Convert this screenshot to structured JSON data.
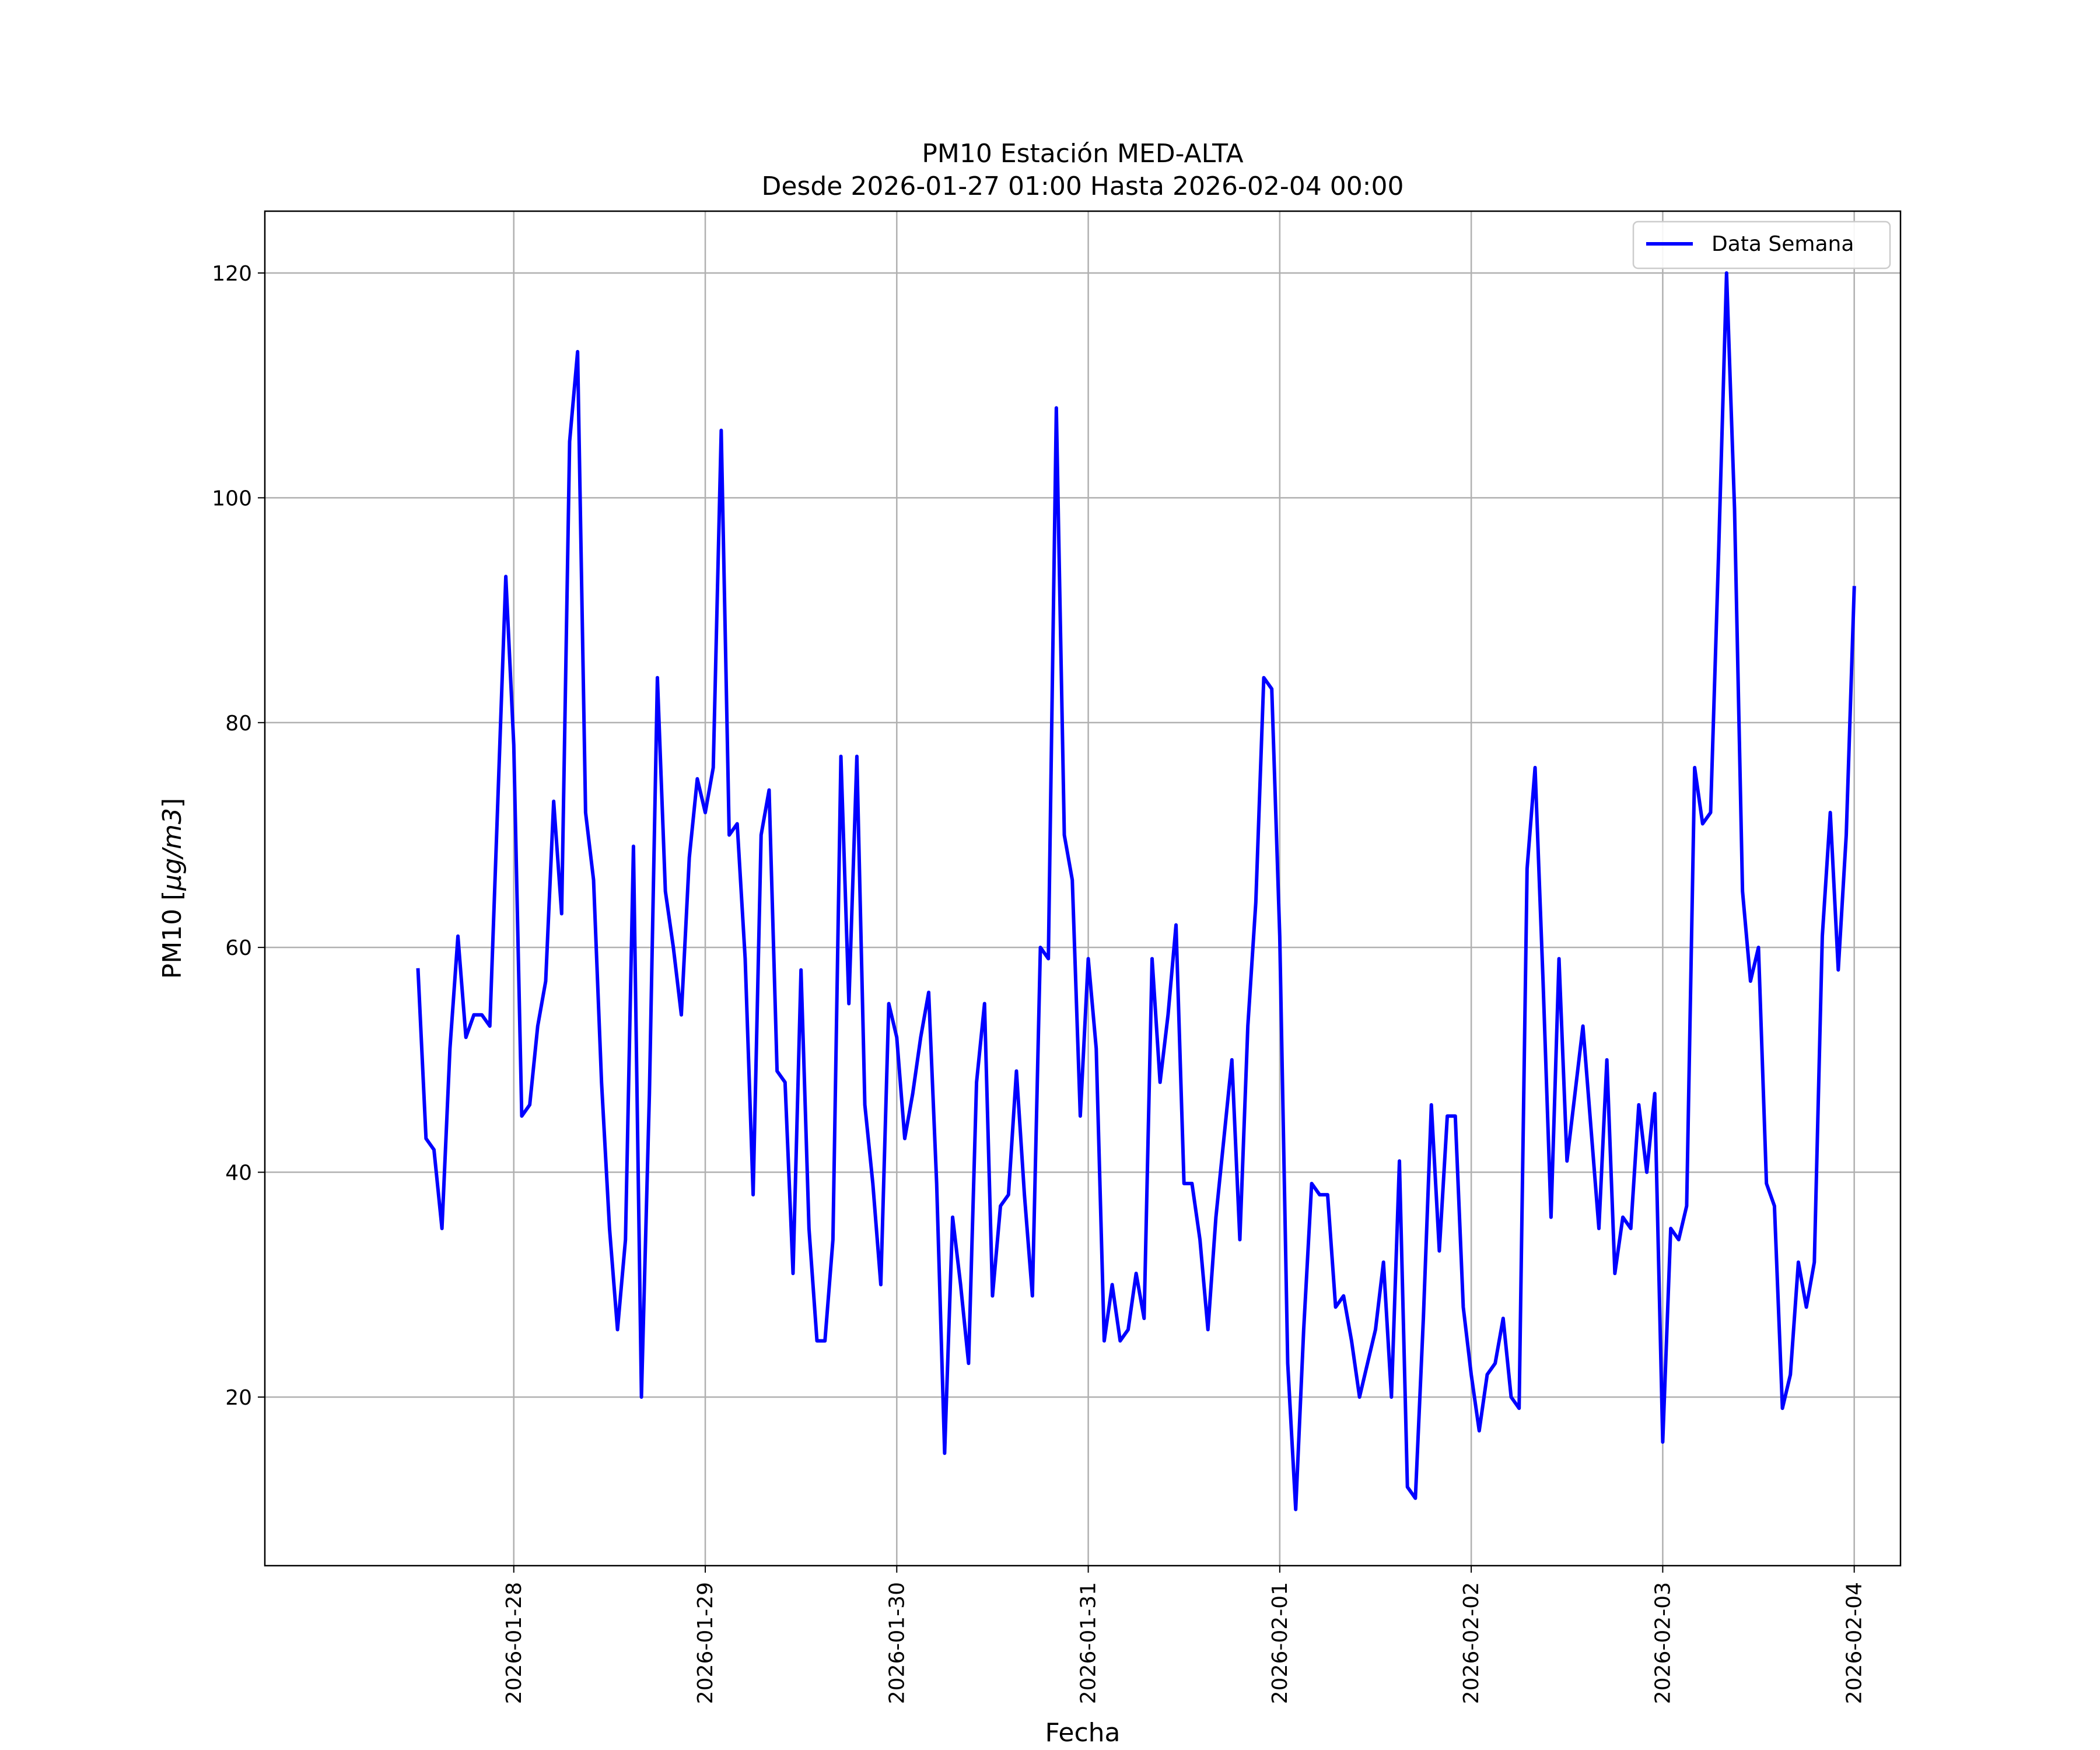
{
  "chart_data": {
    "type": "line",
    "title": "PM10 Estación MED-ALTA",
    "subtitle": "Desde 2026-01-27 01:00 Hasta 2026-02-04 00:00",
    "xlabel": "Fecha",
    "ylabel": "PM10 [",
    "ylabel_unit": "μg/m3",
    "ylabel_suffix": "]",
    "ylim": [
      5,
      125.5
    ],
    "xlim_hours_from_2026_01_28": [
      -31.2,
      173.8
    ],
    "grid": true,
    "legend_position": "top-right",
    "x_tick_labels": [
      "2026-01-28",
      "2026-01-29",
      "2026-01-30",
      "2026-01-31",
      "2026-02-01",
      "2026-02-02",
      "2026-02-03",
      "2026-02-04"
    ],
    "x_tick_hours": [
      0,
      24,
      48,
      72,
      96,
      120,
      144,
      168
    ],
    "y_ticks": [
      20,
      40,
      60,
      80,
      100,
      120
    ],
    "series": [
      {
        "name": "Data Semana",
        "color": "#0000ff",
        "x_hours_from_2026_01_28": [
          -12,
          -11,
          -10,
          -9,
          -8,
          -7,
          -6,
          -5,
          -4,
          -3,
          -2,
          -1,
          0,
          1,
          2,
          3,
          4,
          5,
          6,
          7,
          8,
          9,
          10,
          11,
          12,
          13,
          14,
          15,
          16,
          17,
          18,
          19,
          20,
          21,
          22,
          23,
          24,
          25,
          26,
          27,
          28,
          29,
          30,
          31,
          32,
          33,
          34,
          35,
          36,
          37,
          38,
          39,
          40,
          41,
          42,
          43,
          44,
          45,
          46,
          47,
          48,
          49,
          50,
          51,
          52,
          53,
          54,
          55,
          56,
          57,
          58,
          59,
          60,
          61,
          62,
          63,
          64,
          65,
          66,
          67,
          68,
          69,
          70,
          71,
          72,
          73,
          74,
          75,
          76,
          77,
          78,
          79,
          80,
          81,
          82,
          83,
          84,
          85,
          86,
          87,
          88,
          89,
          90,
          91,
          92,
          93,
          94,
          95,
          96,
          97,
          98,
          99,
          100,
          101,
          102,
          103,
          104,
          105,
          106,
          107,
          108,
          109,
          110,
          111,
          112,
          113,
          114,
          115,
          116,
          117,
          118,
          119,
          120,
          121,
          122,
          123,
          124,
          125,
          126,
          127,
          128,
          129,
          130,
          131,
          132,
          133,
          134,
          135,
          136,
          137,
          138,
          139,
          140,
          141,
          142,
          143,
          144,
          145,
          146,
          147,
          148,
          149,
          150,
          151,
          152,
          153,
          154,
          155,
          156,
          157,
          158,
          159,
          160,
          161,
          162,
          163,
          164,
          165,
          166,
          167,
          168
        ],
        "values": [
          58,
          43,
          42,
          35,
          51,
          61,
          52,
          54,
          54,
          53,
          73,
          93,
          78,
          45,
          46,
          53,
          57,
          73,
          63,
          105,
          113,
          72,
          66,
          48,
          35,
          26,
          34,
          69,
          20,
          47,
          84,
          65,
          60,
          54,
          68,
          75,
          72,
          76,
          106,
          70,
          71,
          59,
          38,
          70,
          74,
          49,
          48,
          31,
          58,
          35,
          25,
          25,
          34,
          77,
          55,
          77,
          46,
          39,
          30,
          55,
          52,
          43,
          47,
          52,
          56,
          39,
          15,
          36,
          30,
          23,
          48,
          55,
          29,
          37,
          38,
          49,
          38,
          29,
          60,
          59,
          108,
          70,
          66,
          45,
          59,
          51,
          25,
          30,
          25,
          26,
          31,
          27,
          59,
          48,
          54,
          62,
          39,
          39,
          34,
          26,
          36,
          43,
          50,
          34,
          53,
          64,
          84,
          83,
          61,
          23,
          10,
          26,
          39,
          38,
          38,
          28,
          29,
          25,
          20,
          23,
          26,
          32,
          20,
          41,
          12,
          11,
          27,
          46,
          33,
          45,
          45,
          28,
          22,
          17,
          22,
          23,
          27,
          20,
          19,
          67,
          76,
          57,
          36,
          59,
          41,
          47,
          53,
          44,
          35,
          50,
          31,
          36,
          35,
          46,
          40,
          47,
          16,
          35,
          34,
          37,
          76,
          71,
          72,
          95,
          120,
          99,
          65,
          57,
          60,
          39,
          37,
          19,
          22,
          32,
          28,
          32,
          61,
          72,
          58,
          70,
          92
        ]
      }
    ]
  }
}
